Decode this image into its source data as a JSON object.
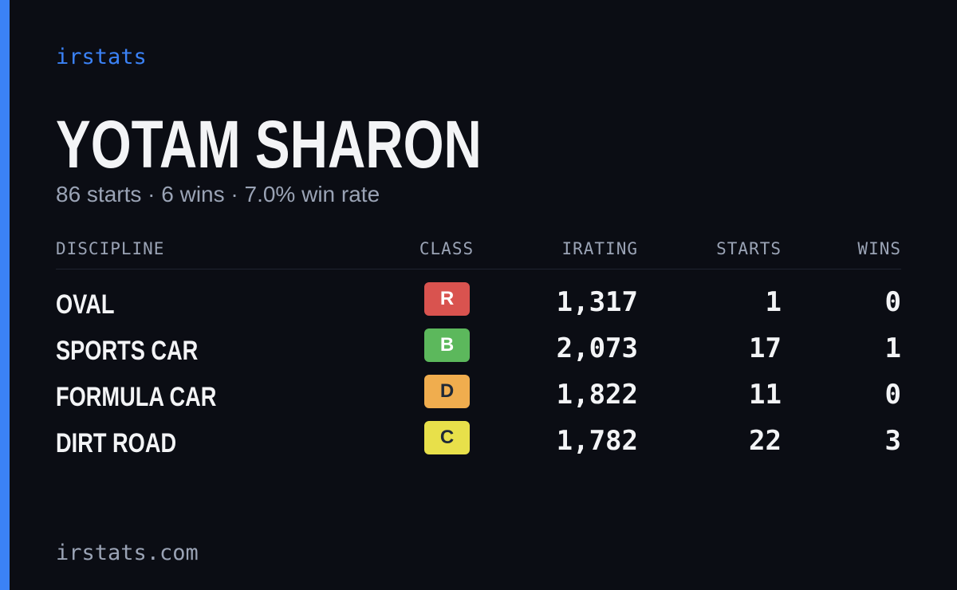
{
  "brand": "irstats",
  "driver": {
    "name": "YOTAM SHARON",
    "summary": "86 starts · 6 wins · 7.0% win rate"
  },
  "table": {
    "headers": [
      "DISCIPLINE",
      "CLASS",
      "IRATING",
      "STARTS",
      "WINS"
    ],
    "rows": [
      {
        "discipline": "OVAL",
        "class": "R",
        "class_color": "#d9534f",
        "irating": "1,317",
        "starts": "1",
        "wins": "0"
      },
      {
        "discipline": "SPORTS CAR",
        "class": "B",
        "class_color": "#5cb85c",
        "irating": "2,073",
        "starts": "17",
        "wins": "1"
      },
      {
        "discipline": "FORMULA CAR",
        "class": "D",
        "class_color": "#f0ad4e",
        "irating": "1,822",
        "starts": "11",
        "wins": "0"
      },
      {
        "discipline": "DIRT ROAD",
        "class": "C",
        "class_color": "#e8e04a",
        "irating": "1,782",
        "starts": "22",
        "wins": "3"
      }
    ]
  },
  "footer": "irstats.com"
}
